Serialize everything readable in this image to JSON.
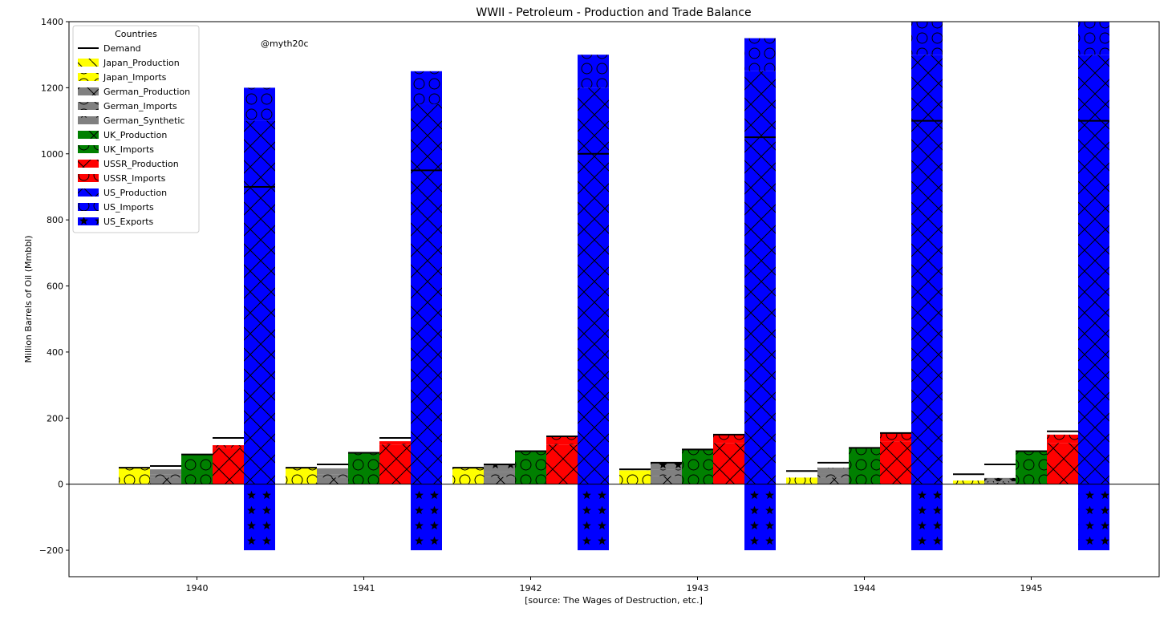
{
  "chart_data": {
    "type": "bar",
    "title": "WWII - Petroleum - Production and Trade Balance",
    "xlabel": "[source: The Wages of Destruction, etc.]",
    "ylabel": "Million Barrels of Oil (Mmbbl)",
    "watermark": "@myth20c",
    "ylim": [
      -280,
      1400
    ],
    "yticks": [
      -200,
      0,
      200,
      400,
      600,
      800,
      1000,
      1200,
      1400
    ],
    "ytick_labels": [
      "−200",
      "0",
      "200",
      "400",
      "600",
      "800",
      "1000",
      "1200",
      "1400"
    ],
    "categories": [
      "1940",
      "1941",
      "1942",
      "1943",
      "1944",
      "1945"
    ],
    "grid": false,
    "legend": {
      "title": "Countries",
      "position": "top-left",
      "entries": [
        {
          "label": "Demand",
          "kind": "line"
        },
        {
          "label": "Japan_Production",
          "color": "#ffff00",
          "hatch": "backslash"
        },
        {
          "label": "Japan_Imports",
          "color": "#ffff00",
          "hatch": "circles"
        },
        {
          "label": "German_Production",
          "color": "#808080",
          "hatch": "cross"
        },
        {
          "label": "German_Imports",
          "color": "#808080",
          "hatch": "circles"
        },
        {
          "label": "German_Synthetic",
          "color": "#808080",
          "hatch": "stars"
        },
        {
          "label": "UK_Production",
          "color": "#008000",
          "hatch": "cross"
        },
        {
          "label": "UK_Imports",
          "color": "#008000",
          "hatch": "circles"
        },
        {
          "label": "USSR_Production",
          "color": "#ff0000",
          "hatch": "cross"
        },
        {
          "label": "USSR_Imports",
          "color": "#ff0000",
          "hatch": "circles"
        },
        {
          "label": "US_Production",
          "color": "#0000ff",
          "hatch": "cross"
        },
        {
          "label": "US_Imports",
          "color": "#0000ff",
          "hatch": "circles"
        },
        {
          "label": "US_Exports",
          "color": "#0000ff",
          "hatch": "stars"
        }
      ]
    },
    "groups": [
      {
        "name": "Japan",
        "color": "#ffff00",
        "segments": [
          {
            "label": "Japan_Production",
            "hatch": "backslash",
            "values": [
              2,
              2,
              2,
              2,
              2,
              2
            ]
          },
          {
            "label": "Japan_Imports",
            "hatch": "circles",
            "values": [
              46,
              46,
              46,
              40,
              18,
              9
            ]
          }
        ],
        "demand": [
          50,
          50,
          50,
          45,
          40,
          30
        ]
      },
      {
        "name": "German",
        "color": "#808080",
        "segments": [
          {
            "label": "German_Production",
            "hatch": "cross",
            "values": [
              20,
              20,
              22,
              25,
              20,
              5
            ]
          },
          {
            "label": "German_Imports",
            "hatch": "circles",
            "values": [
              10,
              10,
              15,
              20,
              12,
              4
            ]
          },
          {
            "label": "German_Synthetic",
            "hatch": "stars",
            "values": [
              15,
              18,
              22,
              20,
              18,
              10
            ]
          }
        ],
        "demand": [
          55,
          60,
          60,
          65,
          65,
          60
        ]
      },
      {
        "name": "UK",
        "color": "#008000",
        "segments": [
          {
            "label": "UK_Production",
            "hatch": "cross",
            "values": [
              0,
              0,
              0,
              0,
              0,
              0
            ]
          },
          {
            "label": "UK_Imports",
            "hatch": "circles",
            "values": [
              90,
              95,
              100,
              105,
              110,
              100
            ]
          }
        ],
        "demand": [
          90,
          95,
          100,
          105,
          110,
          100
        ]
      },
      {
        "name": "USSR",
        "color": "#ff0000",
        "segments": [
          {
            "label": "USSR_Production",
            "hatch": "cross",
            "values": [
              110,
              120,
              120,
              125,
              130,
              125
            ]
          },
          {
            "label": "USSR_Imports",
            "hatch": "circles",
            "values": [
              8,
              10,
              25,
              25,
              25,
              25
            ]
          }
        ],
        "demand": [
          140,
          140,
          145,
          150,
          155,
          160
        ]
      },
      {
        "name": "US",
        "color": "#0000ff",
        "segments": [
          {
            "label": "US_Production",
            "hatch": "cross",
            "values": [
              1100,
              1150,
              1200,
              1250,
              1300,
              1300
            ]
          },
          {
            "label": "US_Imports",
            "hatch": "circles",
            "values": [
              100,
              100,
              100,
              100,
              100,
              100
            ]
          }
        ],
        "negative": {
          "label": "US_Exports",
          "hatch": "stars",
          "values": [
            -200,
            -200,
            -200,
            -200,
            -200,
            -200
          ]
        },
        "demand": [
          900,
          950,
          1000,
          1050,
          1100,
          1100
        ]
      }
    ]
  }
}
